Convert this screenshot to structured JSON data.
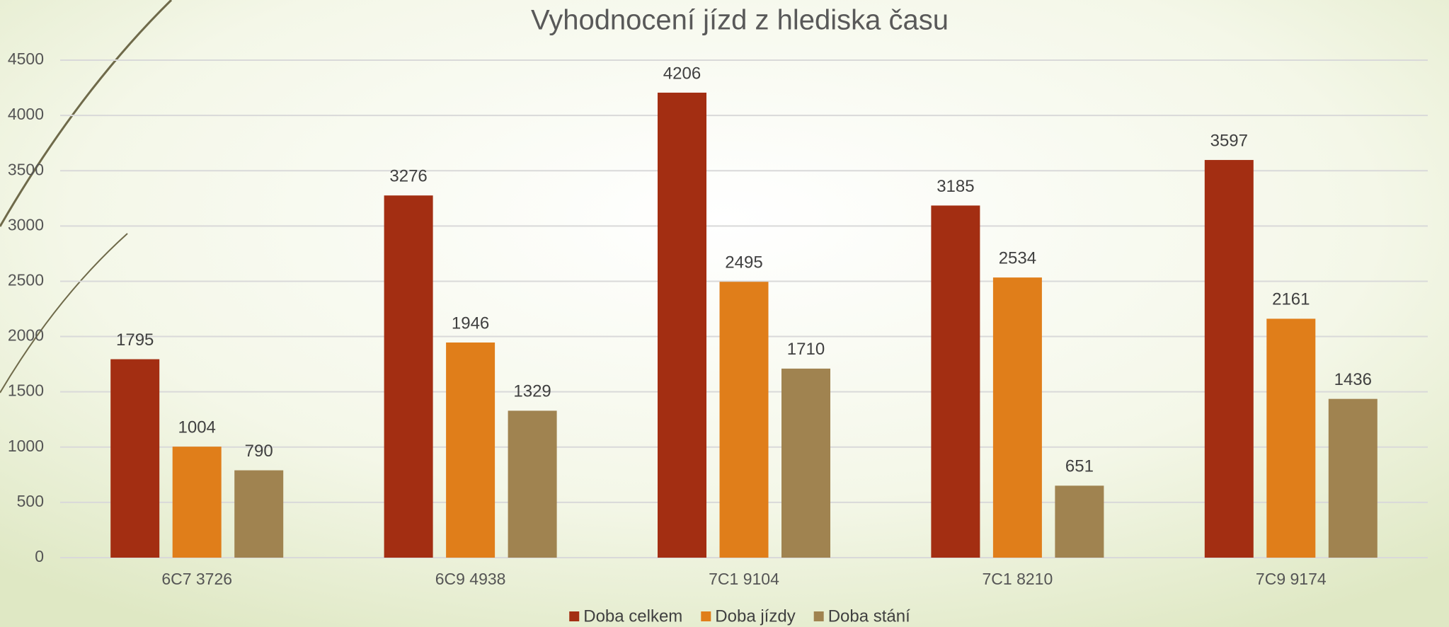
{
  "chart_data": {
    "type": "bar",
    "title": "Vyhodnocení jízd z hlediska času",
    "categories": [
      "6C7 3726",
      "6C9 4938",
      "7C1 9104",
      "7C1 8210",
      "7C9 9174"
    ],
    "series": [
      {
        "name": "Doba celkem",
        "color": "#a32e12",
        "values": [
          1795,
          3276,
          4206,
          3185,
          3597
        ]
      },
      {
        "name": "Doba jízdy",
        "color": "#e07e1a",
        "values": [
          1004,
          1946,
          2495,
          2534,
          2161
        ]
      },
      {
        "name": "Doba stání",
        "color": "#a08350",
        "values": [
          790,
          1329,
          1710,
          651,
          1436
        ]
      }
    ],
    "ylim": [
      0,
      4500
    ],
    "yticks": [
      0,
      500,
      1000,
      1500,
      2000,
      2500,
      3000,
      3500,
      4000,
      4500
    ],
    "grid": true,
    "legend": "bottom"
  }
}
